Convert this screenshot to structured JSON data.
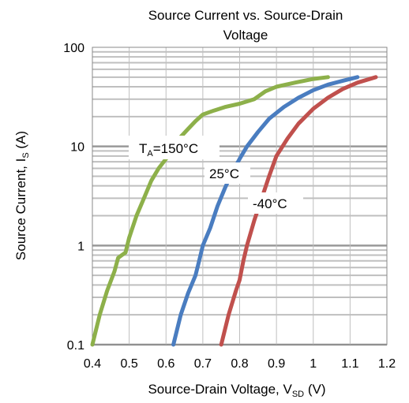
{
  "chart_data": {
    "type": "line",
    "title_line1": "Source Current vs. Source-Drain",
    "title_line2": "Voltage",
    "xlabel": {
      "main": "Source-Drain Voltage, V",
      "sub": "SD",
      "unit": "(V)"
    },
    "ylabel": {
      "main": "Source Current, I",
      "sub": "S",
      "unit": "(A)"
    },
    "xlim": [
      0.4,
      1.2
    ],
    "ylim": [
      0.1,
      100
    ],
    "y_scale": "log",
    "grid": true,
    "x_ticks": [
      "0.4",
      "0.5",
      "0.6",
      "0.7",
      "0.8",
      "0.9",
      "1",
      "1.1",
      "1.2"
    ],
    "y_ticks": [
      "0.1",
      "1",
      "10",
      "100"
    ],
    "annotations": [
      {
        "main": "T",
        "sub": "A",
        "rest": "=150°C"
      },
      {
        "main": "25°C"
      },
      {
        "main": "-40°C"
      }
    ],
    "series": [
      {
        "color": "#8db04a",
        "x": [
          0.4,
          0.42,
          0.44,
          0.46,
          0.47,
          0.48,
          0.49,
          0.5,
          0.52,
          0.54,
          0.56,
          0.58,
          0.6,
          0.62,
          0.64,
          0.66,
          0.68,
          0.7,
          0.73,
          0.76,
          0.8,
          0.84,
          0.87,
          0.9,
          0.95,
          1.0,
          1.04
        ],
        "y": [
          0.1,
          0.2,
          0.35,
          0.55,
          0.75,
          0.8,
          0.85,
          1.2,
          2.0,
          3.0,
          4.5,
          6.0,
          7.5,
          10.0,
          12.5,
          15.0,
          18.0,
          21.0,
          23.0,
          25.0,
          27.0,
          30.0,
          36.0,
          40.0,
          44.0,
          48.0,
          50.0
        ]
      },
      {
        "color": "#4a7dc0",
        "x": [
          0.62,
          0.64,
          0.66,
          0.68,
          0.69,
          0.7,
          0.72,
          0.74,
          0.76,
          0.78,
          0.8,
          0.82,
          0.85,
          0.88,
          0.92,
          0.96,
          1.0,
          1.04,
          1.08,
          1.12
        ],
        "y": [
          0.1,
          0.2,
          0.33,
          0.5,
          0.7,
          1.0,
          1.5,
          2.5,
          3.8,
          5.5,
          7.5,
          10.0,
          14.0,
          19.0,
          25.0,
          31.0,
          37.0,
          42.0,
          46.0,
          50.0
        ]
      },
      {
        "color": "#c0504d",
        "x": [
          0.75,
          0.77,
          0.79,
          0.8,
          0.81,
          0.82,
          0.84,
          0.86,
          0.88,
          0.9,
          0.93,
          0.96,
          1.0,
          1.04,
          1.08,
          1.12,
          1.17
        ],
        "y": [
          0.1,
          0.2,
          0.35,
          0.45,
          0.7,
          1.0,
          1.8,
          3.0,
          5.0,
          8.0,
          12.0,
          17.0,
          24.0,
          31.0,
          38.0,
          44.0,
          50.0
        ]
      }
    ]
  }
}
